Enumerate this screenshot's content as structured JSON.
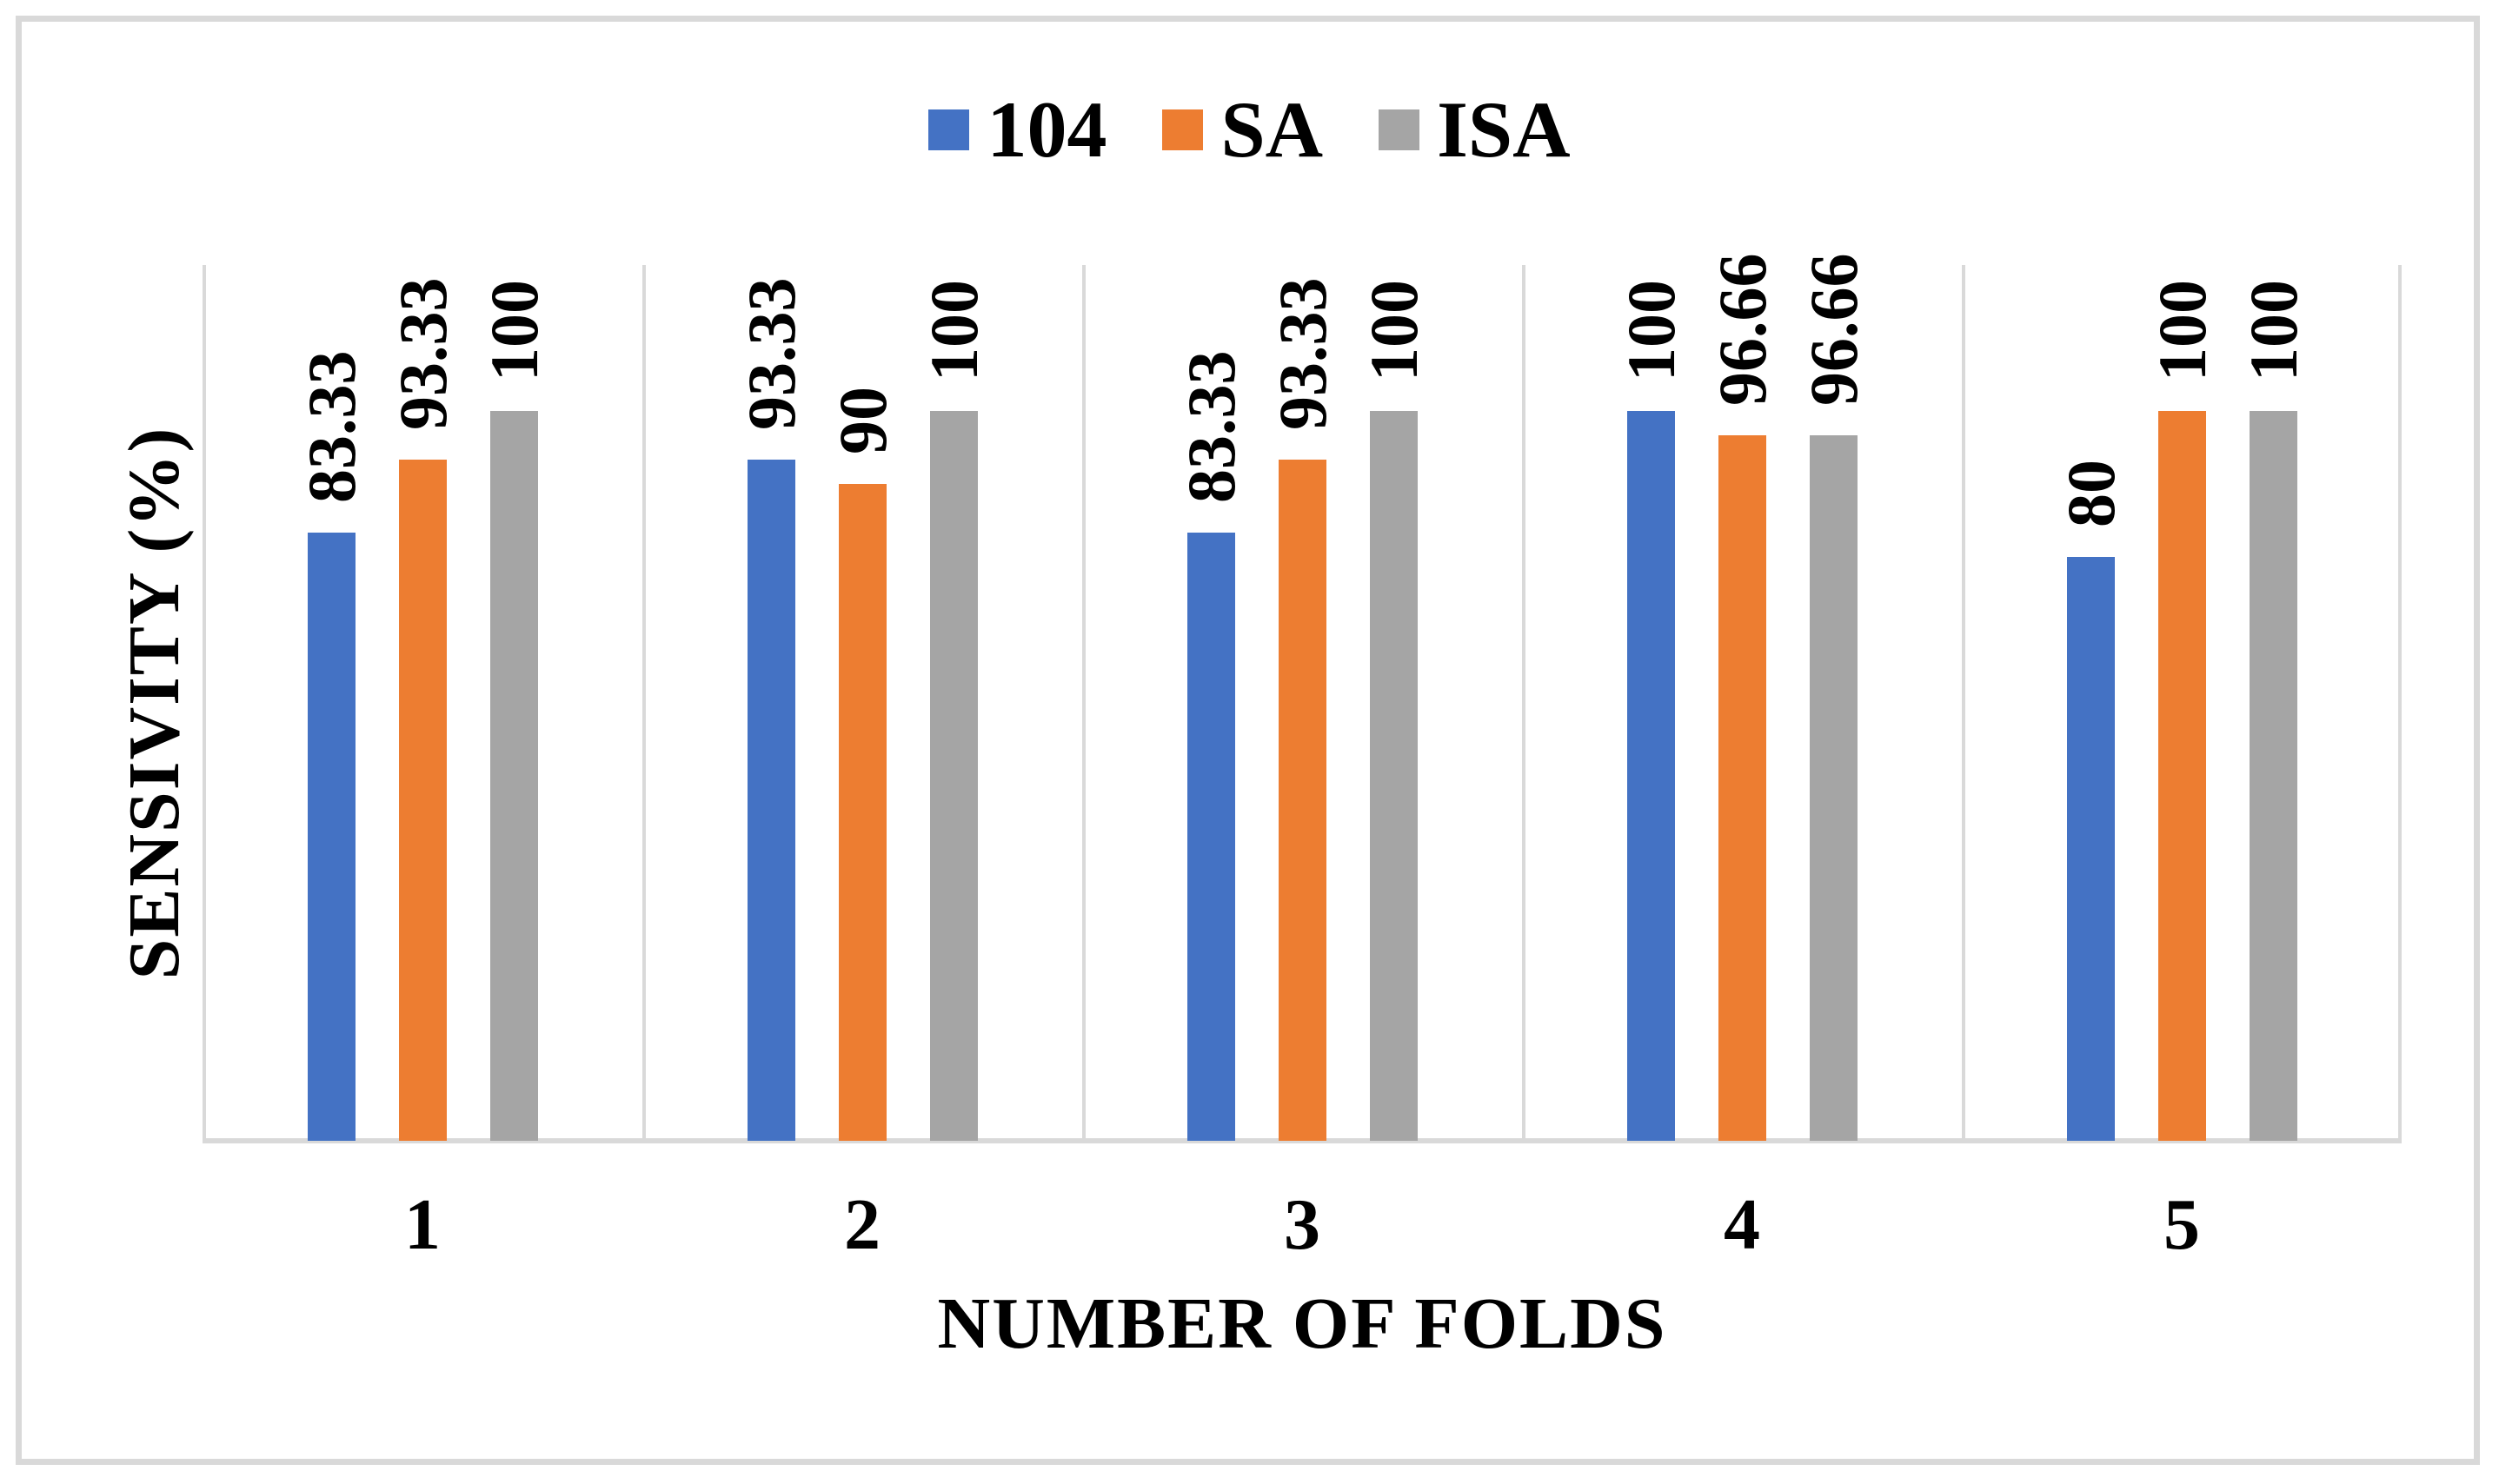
{
  "figure": {
    "background": "#ffffff",
    "border_color": "#d9d9d9"
  },
  "legend": {
    "position": "top-center",
    "items": [
      {
        "label": "104",
        "color": "#4472c4",
        "marker": "square"
      },
      {
        "label": "SA",
        "color": "#ed7d31",
        "marker": "square"
      },
      {
        "label": "ISA",
        "color": "#a5a5a5",
        "marker": "square"
      }
    ]
  },
  "axes": {
    "x_title": "NUMBER OF FOLDS",
    "y_title": "SENSIVITY (%)",
    "axis_line_color": "#d9d9d9",
    "y_tick_labels_visible": false
  },
  "chart_data": {
    "type": "bar",
    "title": "",
    "xlabel": "NUMBER OF FOLDS",
    "ylabel": "SENSIVITY (%)",
    "categories": [
      "1",
      "2",
      "3",
      "4",
      "5"
    ],
    "series": [
      {
        "name": "104",
        "color": "#4472c4",
        "values": [
          83.33,
          93.33,
          83.33,
          100,
          80
        ],
        "labels": [
          "83.33",
          "93.33",
          "83.33",
          "100",
          "80"
        ]
      },
      {
        "name": "SA",
        "color": "#ed7d31",
        "values": [
          93.33,
          90,
          93.33,
          96.66,
          100
        ],
        "labels": [
          "93.33",
          "90",
          "93.33",
          "96.66",
          "100"
        ]
      },
      {
        "name": "ISA",
        "color": "#a5a5a5",
        "values": [
          100,
          100,
          100,
          96.66,
          100
        ],
        "labels": [
          "100",
          "100",
          "100",
          "96.66",
          "100"
        ]
      }
    ],
    "ylim": [
      0,
      120
    ],
    "grid": {
      "vertical_category_lines": true,
      "horizontal_lines": false
    },
    "legend_position": "top",
    "data_label_rotation_deg": -90,
    "data_label_position": "outside-end"
  }
}
